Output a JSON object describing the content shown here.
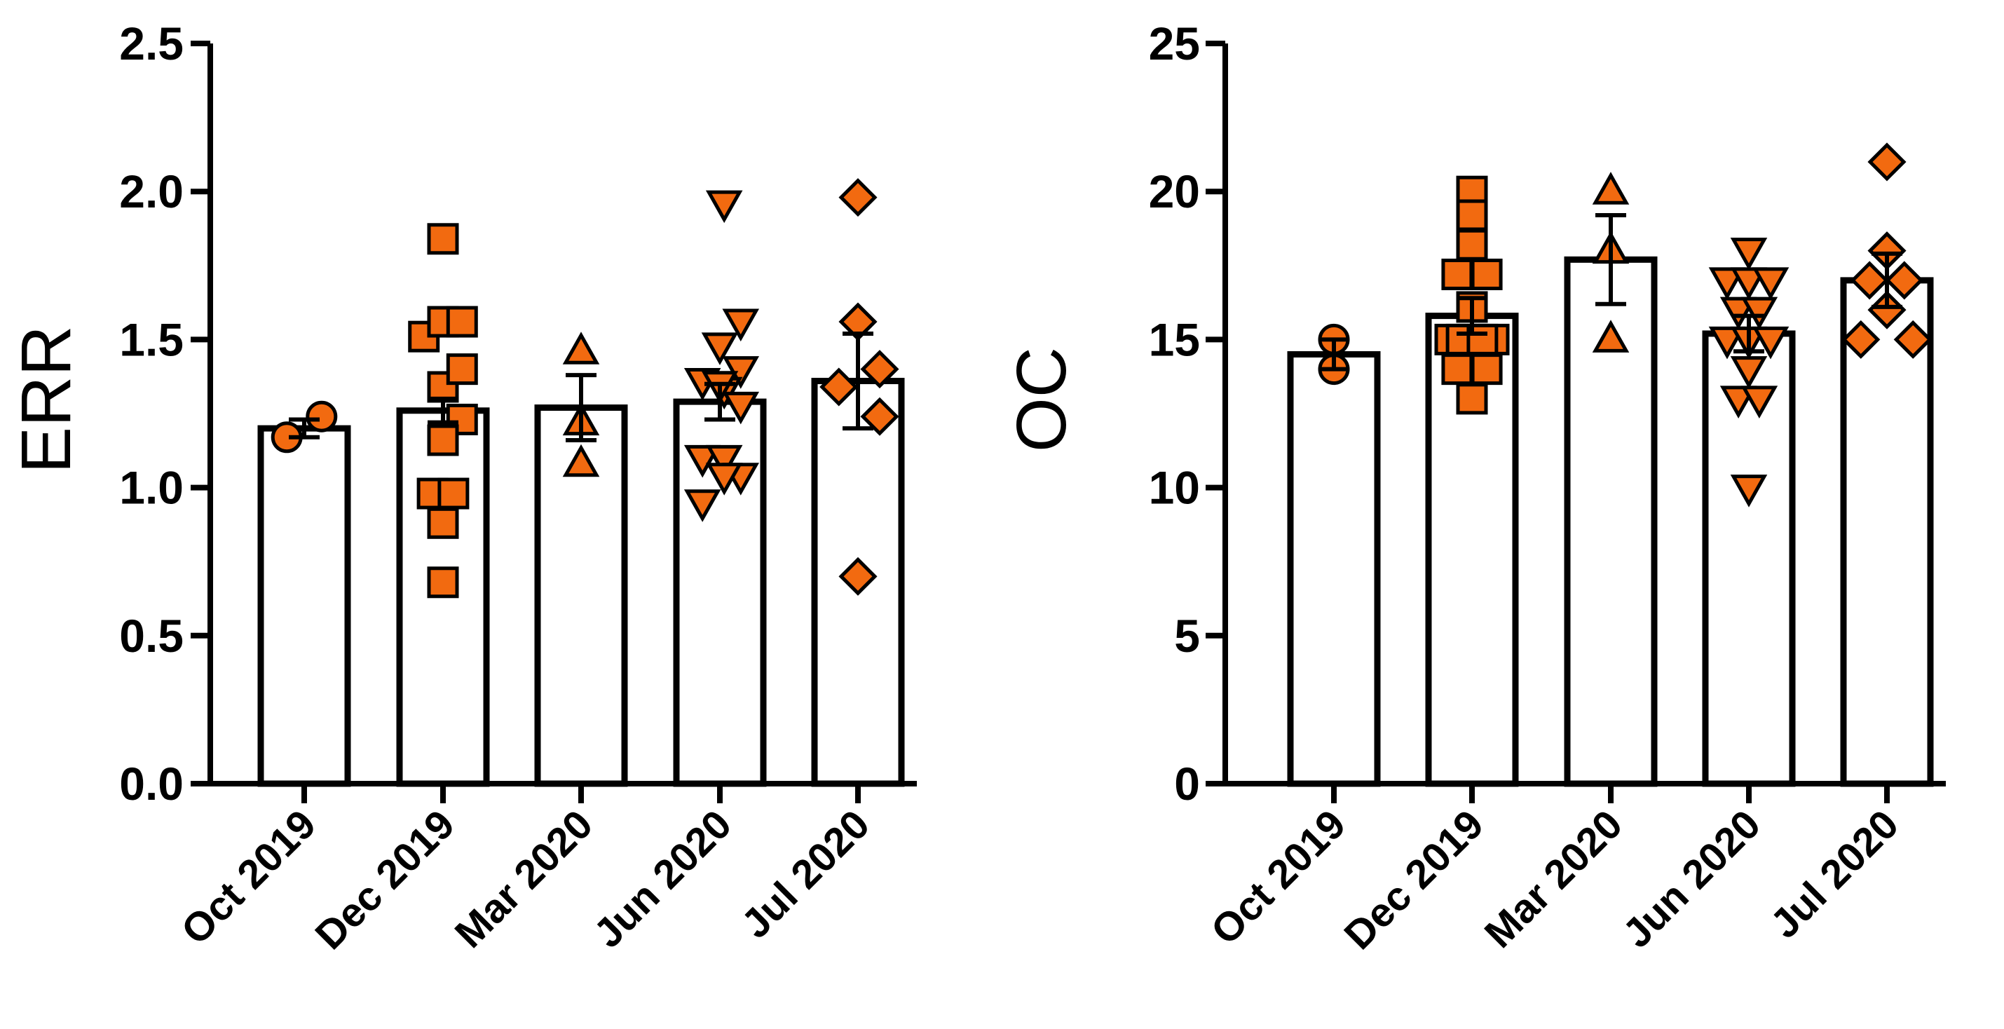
{
  "colors": {
    "marker_fill": "#f26a10",
    "marker_stroke": "#000000",
    "bar_fill": "#ffffff",
    "axis": "#000000"
  },
  "chart_data": [
    {
      "type": "bar",
      "ylabel": "ERR",
      "xlabel": "",
      "ylim": [
        0,
        2.5
      ],
      "yticks": [
        "0.0",
        "0.5",
        "1.0",
        "1.5",
        "2.0",
        "2.5"
      ],
      "categories": [
        "Oct 2019",
        "Dec 2019",
        "Mar 2020",
        "Jun 2020",
        "Jul 2020"
      ],
      "means": [
        1.2,
        1.26,
        1.27,
        1.29,
        1.36
      ],
      "sem": [
        0.03,
        0.04,
        0.11,
        0.06,
        0.16
      ],
      "markers": [
        "circle",
        "square",
        "triangle-up",
        "triangle-down",
        "diamond"
      ],
      "points": [
        [
          [
            -0.2,
            1.17
          ],
          [
            0.2,
            1.24
          ]
        ],
        [
          [
            -0.22,
            1.51
          ],
          [
            0.0,
            1.84
          ],
          [
            0.0,
            1.56
          ],
          [
            0.22,
            1.56
          ],
          [
            0.0,
            1.34
          ],
          [
            0.22,
            1.4
          ],
          [
            0.22,
            1.23
          ],
          [
            0.0,
            1.16
          ],
          [
            -0.12,
            0.98
          ],
          [
            0.12,
            0.98
          ],
          [
            0.0,
            0.88
          ],
          [
            0.0,
            0.68
          ]
        ],
        [
          [
            0.0,
            1.46
          ],
          [
            0.0,
            1.22
          ],
          [
            0.0,
            1.08
          ]
        ],
        [
          [
            0.05,
            1.96
          ],
          [
            0.24,
            1.56
          ],
          [
            0.0,
            1.48
          ],
          [
            0.24,
            1.4
          ],
          [
            -0.2,
            1.36
          ],
          [
            0.05,
            1.33
          ],
          [
            0.24,
            1.28
          ],
          [
            -0.2,
            1.1
          ],
          [
            0.05,
            1.1
          ],
          [
            0.24,
            1.04
          ],
          [
            0.05,
            1.04
          ],
          [
            -0.2,
            0.95
          ],
          [
            0.0,
            1.35
          ]
        ],
        [
          [
            0.0,
            1.98
          ],
          [
            0.0,
            1.56
          ],
          [
            0.25,
            1.4
          ],
          [
            -0.22,
            1.34
          ],
          [
            0.25,
            1.24
          ],
          [
            0.0,
            0.7
          ]
        ]
      ]
    },
    {
      "type": "bar",
      "ylabel": "OC",
      "xlabel": "",
      "ylim": [
        0,
        25
      ],
      "yticks": [
        "0",
        "5",
        "10",
        "15",
        "20",
        "25"
      ],
      "categories": [
        "Oct 2019",
        "Dec 2019",
        "Mar 2020",
        "Jun 2020",
        "Jul 2020"
      ],
      "means": [
        14.5,
        15.8,
        17.7,
        15.2,
        17.0
      ],
      "sem": [
        0.5,
        0.6,
        1.5,
        0.6,
        0.9
      ],
      "markers": [
        "circle",
        "square",
        "triangle-up",
        "triangle-down",
        "diamond"
      ],
      "points": [
        [
          [
            0.0,
            15.0
          ],
          [
            0.0,
            14.0
          ]
        ],
        [
          [
            0.0,
            20.0
          ],
          [
            0.0,
            19.2
          ],
          [
            0.0,
            18.2
          ],
          [
            -0.17,
            17.2
          ],
          [
            0.17,
            17.2
          ],
          [
            0.0,
            16.1
          ],
          [
            -0.25,
            15.0
          ],
          [
            0.0,
            15.0
          ],
          [
            0.25,
            15.0
          ],
          [
            -0.12,
            15.0
          ],
          [
            0.12,
            15.0
          ],
          [
            -0.17,
            14.0
          ],
          [
            0.17,
            14.0
          ],
          [
            0.0,
            13.0
          ]
        ],
        [
          [
            0.0,
            20.0
          ],
          [
            0.0,
            18.0
          ],
          [
            0.0,
            15.0
          ]
        ],
        [
          [
            0.0,
            18.0
          ],
          [
            -0.25,
            17.0
          ],
          [
            0.0,
            17.0
          ],
          [
            0.25,
            17.0
          ],
          [
            -0.12,
            16.0
          ],
          [
            0.12,
            16.0
          ],
          [
            -0.25,
            15.0
          ],
          [
            0.0,
            15.0
          ],
          [
            0.25,
            15.0
          ],
          [
            -0.12,
            13.0
          ],
          [
            0.12,
            13.0
          ],
          [
            0.0,
            14.0
          ],
          [
            0.0,
            10.0
          ]
        ],
        [
          [
            0.0,
            21.0
          ],
          [
            0.0,
            18.0
          ],
          [
            -0.2,
            17.0
          ],
          [
            0.2,
            17.0
          ],
          [
            0.0,
            16.0
          ],
          [
            -0.3,
            15.0
          ],
          [
            0.3,
            15.0
          ]
        ]
      ]
    }
  ]
}
